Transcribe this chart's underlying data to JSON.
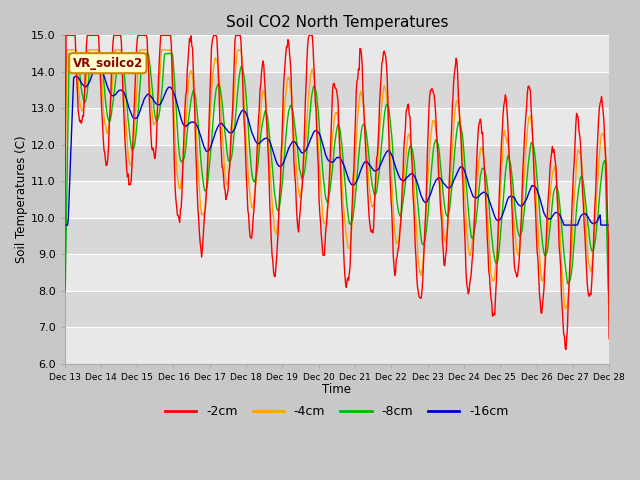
{
  "title": "Soil CO2 North Temperatures",
  "xlabel": "Time",
  "ylabel": "Soil Temperatures (C)",
  "ylim": [
    6.0,
    15.0
  ],
  "yticks": [
    6.0,
    7.0,
    8.0,
    9.0,
    10.0,
    11.0,
    12.0,
    13.0,
    14.0,
    15.0
  ],
  "xtick_labels": [
    "Dec 13",
    "Dec 14",
    "Dec 15",
    "Dec 16",
    "Dec 17",
    "Dec 18",
    "Dec 19",
    "Dec 20",
    "Dec 21",
    "Dec 22",
    "Dec 23",
    "Dec 24",
    "Dec 25",
    "Dec 26",
    "Dec 27",
    "Dec 28"
  ],
  "legend_labels": [
    "-2cm",
    "-4cm",
    "-8cm",
    "-16cm"
  ],
  "line_colors": [
    "#ff0000",
    "#ffa500",
    "#00bb00",
    "#0000cc"
  ],
  "annotation_text": "VR_soilco2",
  "annotation_bg": "#ffffcc",
  "annotation_border": "#cc8800",
  "fig_bg": "#c8c8c8",
  "plot_bg": "#e0e0e0",
  "band_colors": [
    "#e8e8e8",
    "#d8d8d8"
  ]
}
